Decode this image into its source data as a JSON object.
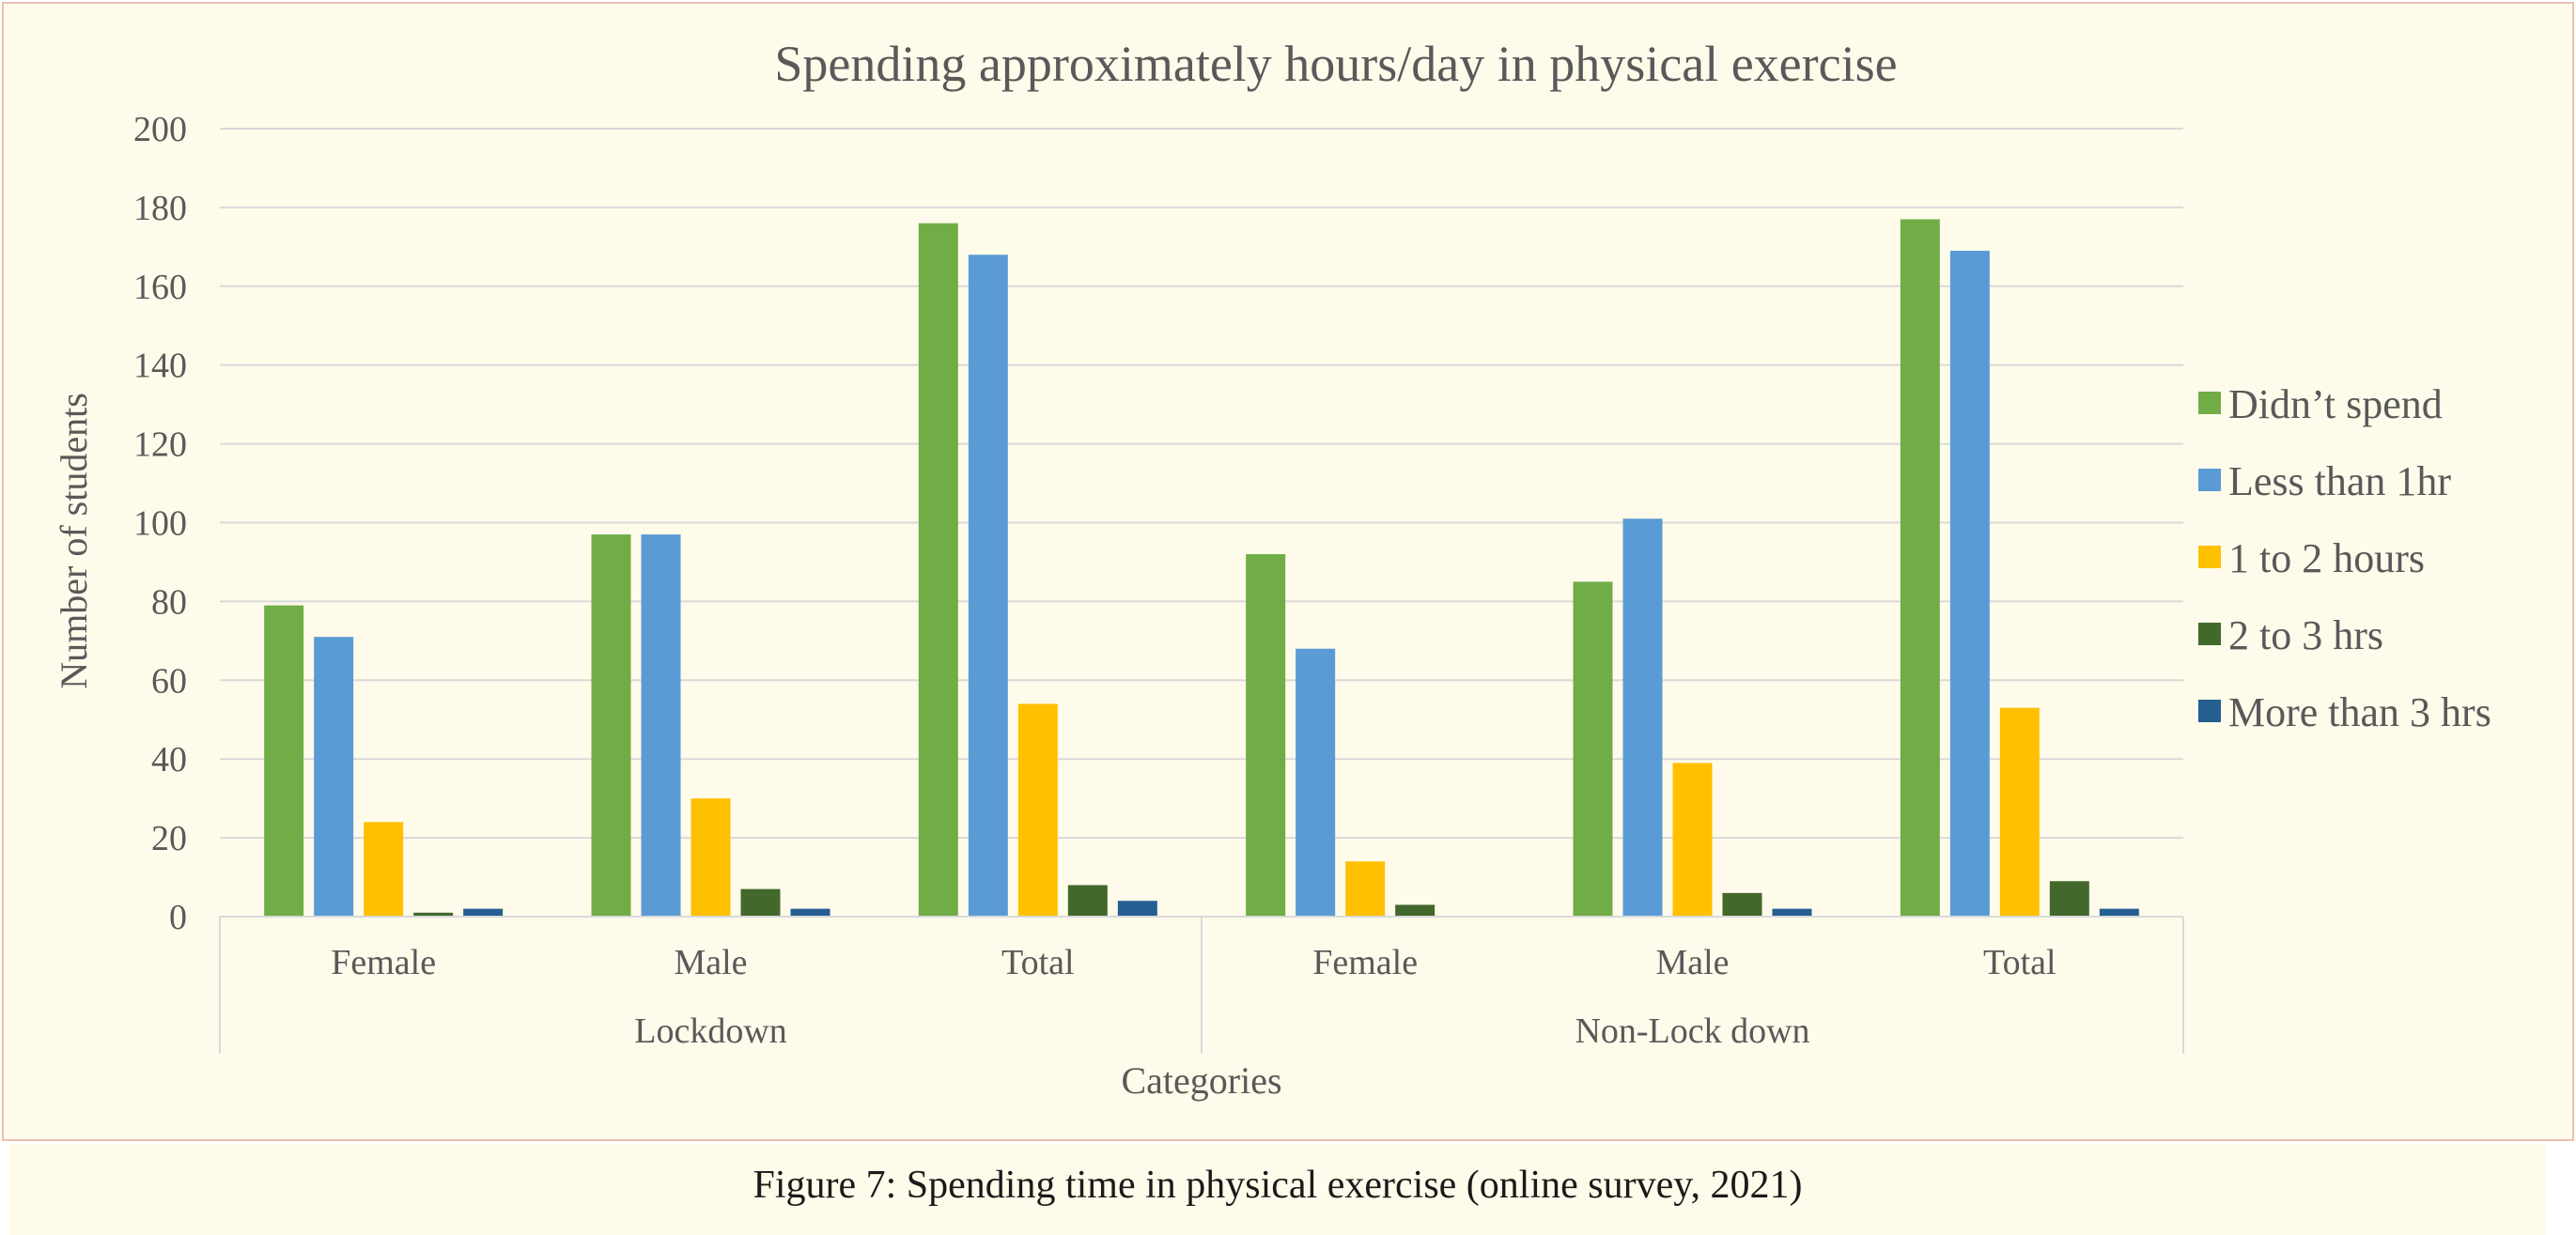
{
  "chart_data": {
    "type": "bar",
    "title": "Spending approximately hours/day in physical exercise",
    "xlabel": "Categories",
    "ylabel": "Number of students",
    "ylim": [
      0,
      200
    ],
    "yticks": [
      0,
      20,
      40,
      60,
      80,
      100,
      120,
      140,
      160,
      180,
      200
    ],
    "grid": true,
    "legend_position": "right",
    "categories": [
      "Female",
      "Male",
      "Total",
      "Female",
      "Male",
      "Total"
    ],
    "groups": [
      {
        "label": "Lockdown",
        "categories": [
          "Female",
          "Male",
          "Total"
        ]
      },
      {
        "label": "Non-Lock down",
        "categories": [
          "Female",
          "Male",
          "Total"
        ]
      }
    ],
    "series": [
      {
        "name": "Didn’t spend",
        "color": "#70ad47",
        "values": [
          79,
          97,
          176,
          92,
          85,
          177
        ]
      },
      {
        "name": "Less than 1hr",
        "color": "#5b9bd5",
        "values": [
          71,
          97,
          168,
          68,
          101,
          169
        ]
      },
      {
        "name": "1 to 2 hours",
        "color": "#ffc000",
        "values": [
          24,
          30,
          54,
          14,
          39,
          53
        ]
      },
      {
        "name": "2 to 3 hrs",
        "color": "#43682b",
        "values": [
          1,
          7,
          8,
          3,
          6,
          9
        ]
      },
      {
        "name": "More than  3  hrs",
        "color": "#255e91",
        "values": [
          2,
          2,
          4,
          0,
          2,
          2
        ]
      }
    ]
  },
  "caption": "Figure 7: Spending time in physical exercise (online survey, 2021)"
}
